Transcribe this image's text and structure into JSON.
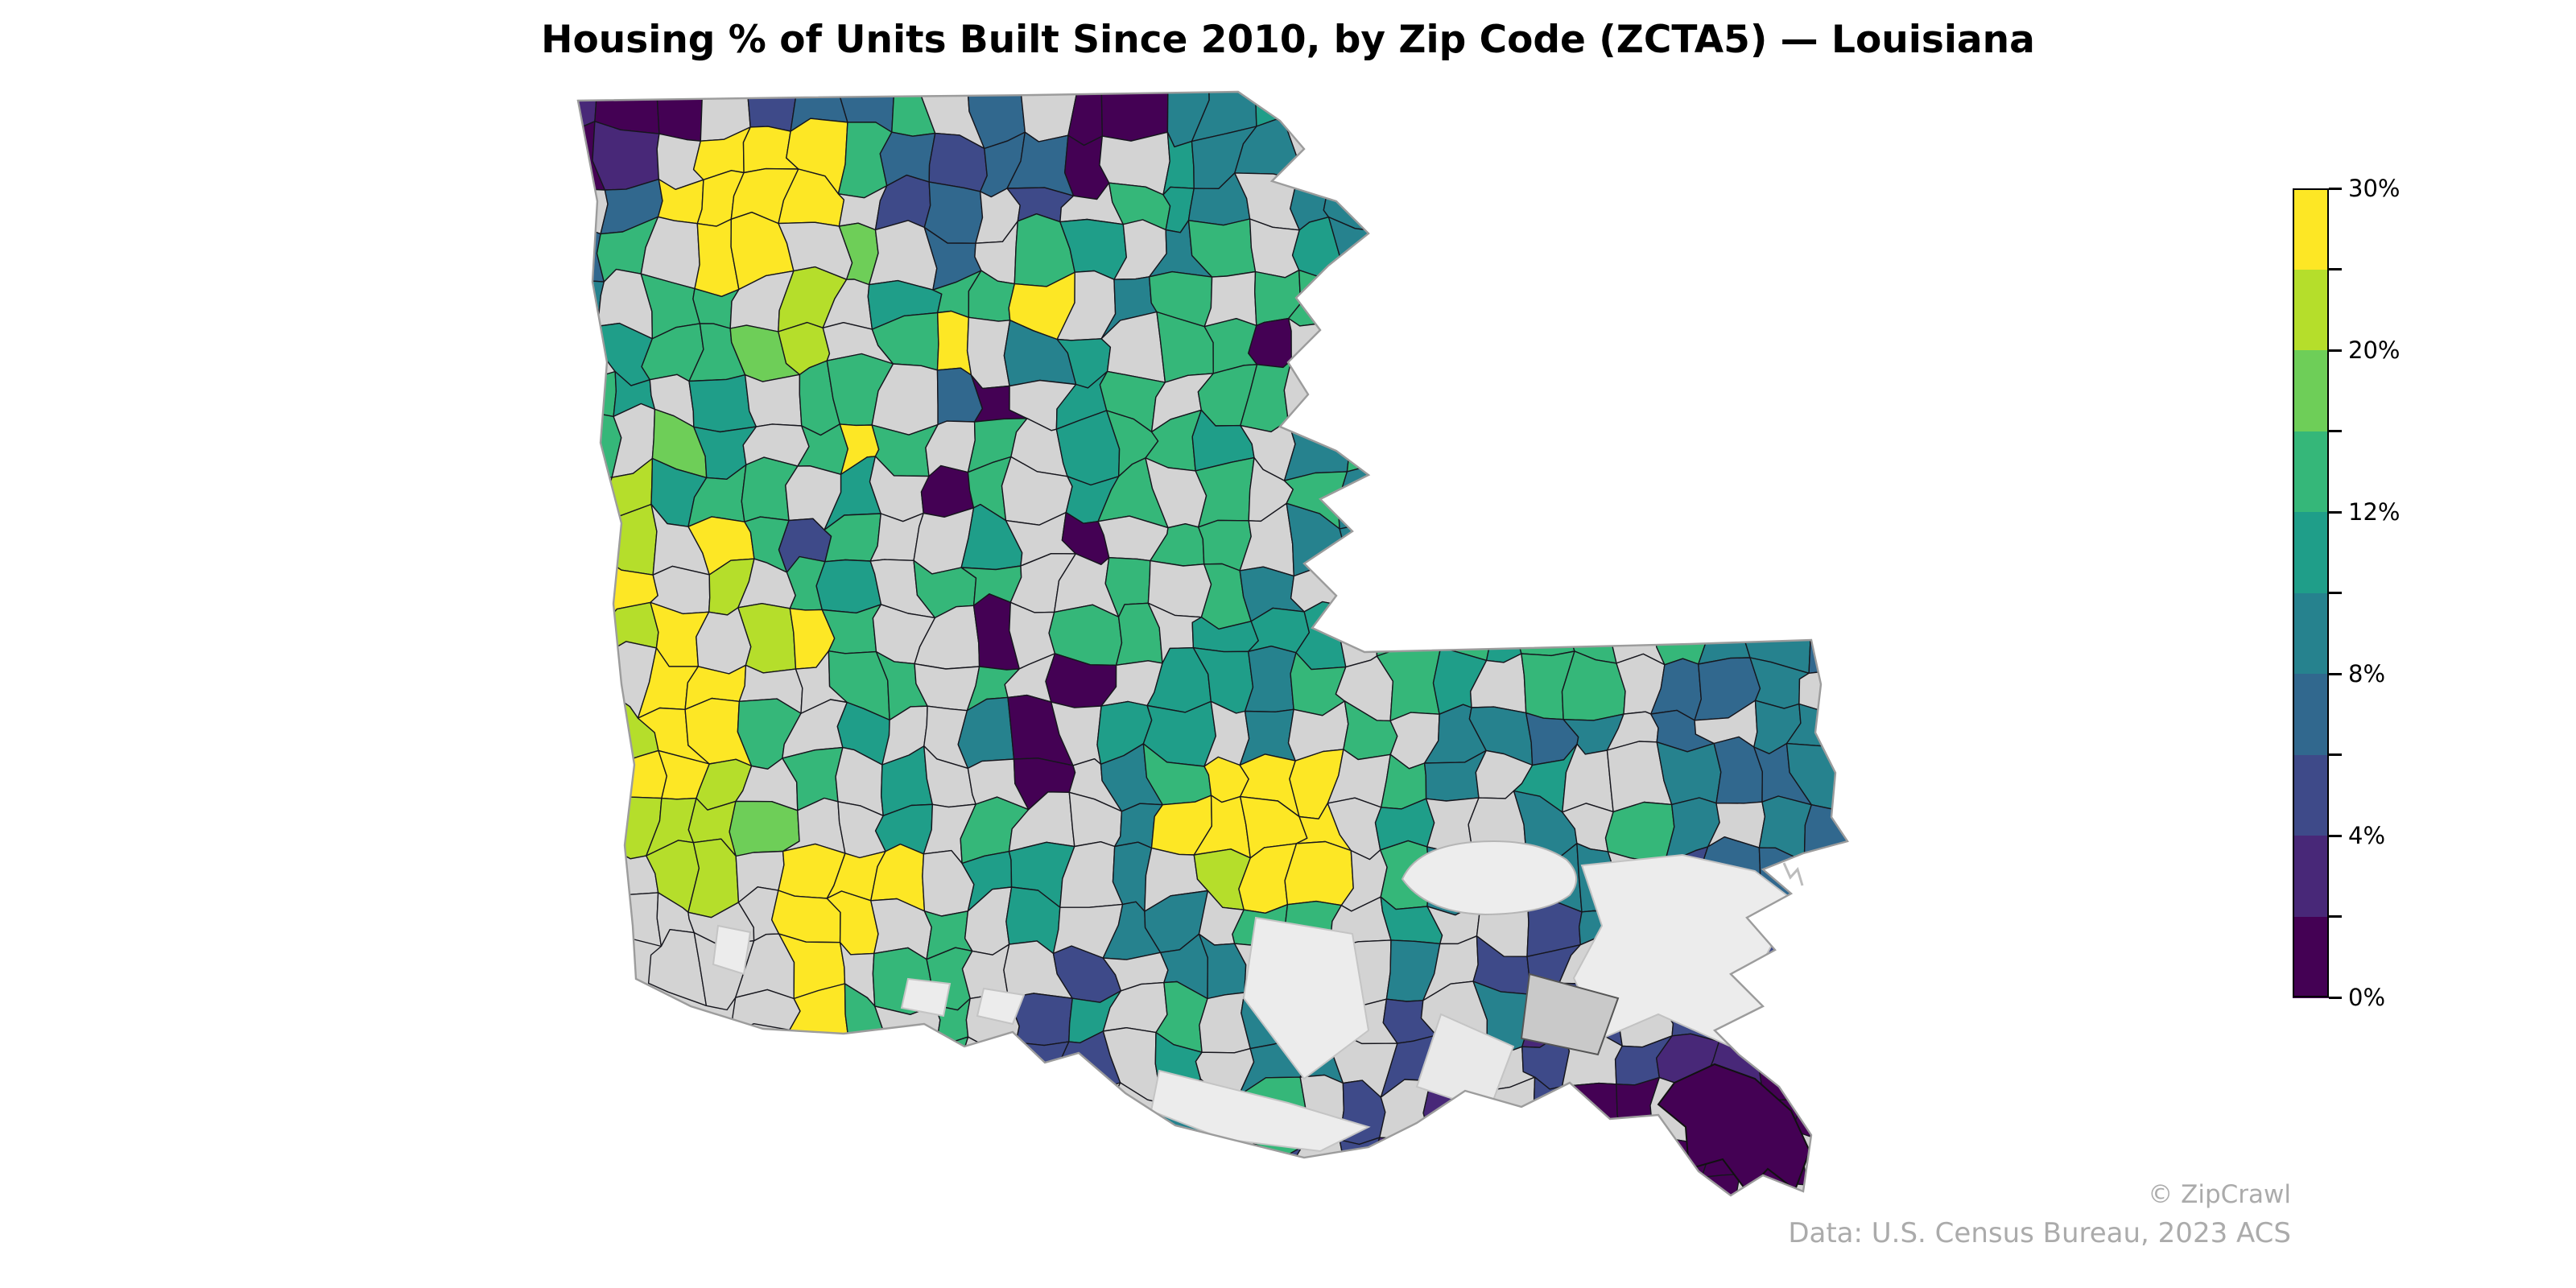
{
  "title": "Housing % of Units Built Since 2010, by Zip Code (ZCTA5) — Louisiana",
  "footer": {
    "attribution": "© ZipCrawl",
    "source": "Data: U.S. Census Bureau, 2023 ACS"
  },
  "colorbar": {
    "n_segments": 10,
    "segment_colors_top_to_bottom": [
      "#fde725",
      "#b5de2b",
      "#6ece58",
      "#35b779",
      "#1f9e89",
      "#26828e",
      "#31688e",
      "#3e4a89",
      "#482878",
      "#440154"
    ],
    "tick_labels": [
      "30%",
      "20%",
      "12%",
      "8%",
      "4%",
      "0%"
    ],
    "labeled_tick_positions": [
      0,
      2,
      4,
      6,
      8,
      10
    ],
    "minor_tick_positions": [
      1,
      3,
      5,
      7,
      9
    ],
    "outline_color": "#000000"
  },
  "chart_data": {
    "type": "choropleth_map",
    "title": "Housing % of Units Built Since 2010, by Zip Code (ZCTA5) — Louisiana",
    "region": "Louisiana",
    "geography": "Zip Code Tabulation Areas (ZCTA5)",
    "metric": "% of housing units built since 2010",
    "value_domain": [
      "0%",
      "30%"
    ],
    "scale_tick_labels": [
      "0%",
      "4%",
      "8%",
      "12%",
      "20%",
      "30%"
    ],
    "colormap": "viridis, 10 discrete classes (dark purple = 0%, yellow = 30%)",
    "legend_position": "right",
    "source_text": "Data: U.S. Census Bureau, 2023 ACS",
    "attribution_text": "© ZipCrawl",
    "class_colors_low_to_high": [
      "#440154",
      "#482878",
      "#3e4a89",
      "#31688e",
      "#26828e",
      "#1f9e89",
      "#35b779",
      "#6ece58",
      "#b5de2b",
      "#fde725"
    ],
    "no_data_color": "#d3d3d3",
    "water_color": "#ececec",
    "marsh_color": "#c9c9c9",
    "approx_class_grid": {
      "note": "coarse spatial approximation of the zip mosaic; 0-9 = viridis class index (0 lowest, 9 highest), G = no-data gray, . = outside state",
      "cols": 28,
      "rows": 24,
      "cells": [
        "100G2336G3G0044534G.........",
        "01G999632330G544G33.........",
        "G39999G23G2G654G443.........",
        "36G99G7G3G65G46G544.........",
        "4G66G8G5669G46G6654.........",
        "G56678G69G45G660G55.........",
        "65G5G66G30G56G66G44.........",
        "6G75G696G6G5665G464.........",
        "G8566G5G06G56G6G644.........",
        "78G9626GG5G0G66G444.........",
        "89G8G65G66GG6G64G44.........",
        "889G896GG0G66G555G66566G6443",
        "8G99GG66G6G0G5546G65G66G334G",
        "G8996G5GG40G55G4G6G4434G3G44",
        "7998G6G5GG0G46999G64G5GG4334",
        "G8887GG5G6GG49999G5GG4G64G43",
        "GG88G999G55G4G899G64G44G2334",
        ".GGGG99G6G5G44G66G5GG242GG23",
        "..GGG9G66GG2G44G5G4G22G21122",
        "....G96G6G25G6G49G2G412G2001",
        "......G66G22G5G44G2GG2G21100",
        ".......G6G2GG4G6G2G1G200G000",
        "........G2GG2G52G21GG100000.",
        "..........G22G2G2G1G0G0000.."
      ]
    }
  }
}
